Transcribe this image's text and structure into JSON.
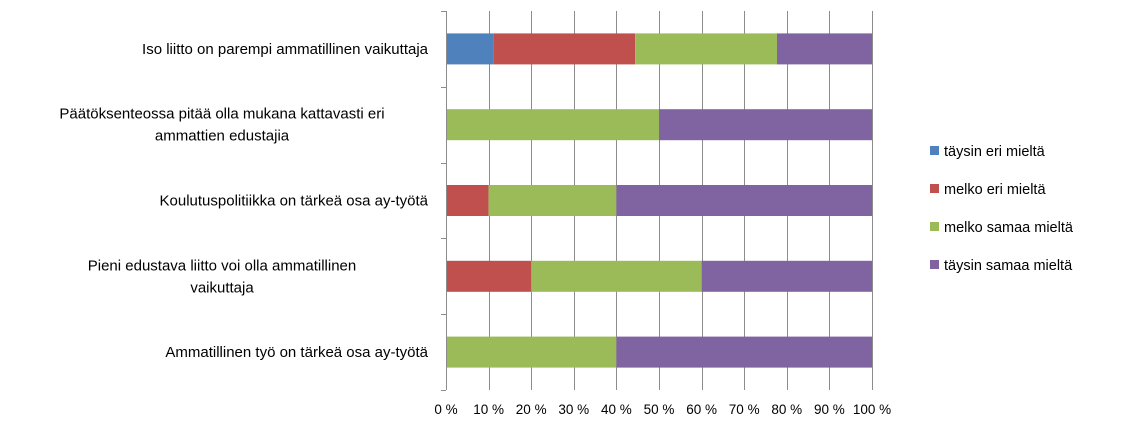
{
  "chart_data": {
    "type": "bar",
    "orientation": "horizontal",
    "stacked": true,
    "percent": true,
    "categories": [
      [
        "Iso liitto on parempi ammatillinen vaikuttaja"
      ],
      [
        "Päätöksenteossa pitää olla mukana kattavasti eri",
        "ammattien edustajia"
      ],
      [
        "Koulutuspolitiikka on tärkeä osa ay-työtä"
      ],
      [
        "Pieni edustava liitto voi olla ammatillinen",
        "vaikuttaja"
      ],
      [
        "Ammatillinen työ on tärkeä osa ay-työtä"
      ]
    ],
    "series": [
      {
        "name": "täysin eri mieltä",
        "color": "#4f81bd",
        "values": [
          11.1,
          0,
          0,
          0,
          0
        ]
      },
      {
        "name": "melko eri mieltä",
        "color": "#c0504d",
        "values": [
          33.3,
          0,
          10,
          20,
          0
        ]
      },
      {
        "name": "melko samaa mieltä",
        "color": "#9bbb59",
        "values": [
          33.3,
          50,
          30,
          40,
          40
        ]
      },
      {
        "name": "täysin samaa mieltä",
        "color": "#8064a2",
        "values": [
          22.3,
          50,
          60,
          40,
          60
        ]
      }
    ],
    "xlim": [
      0,
      100
    ],
    "xticks": [
      "0 %",
      "10 %",
      "20 %",
      "30 %",
      "40 %",
      "50 %",
      "60 %",
      "70 %",
      "80 %",
      "90 %",
      "100 %"
    ],
    "grid": true,
    "legend_position": "right"
  }
}
